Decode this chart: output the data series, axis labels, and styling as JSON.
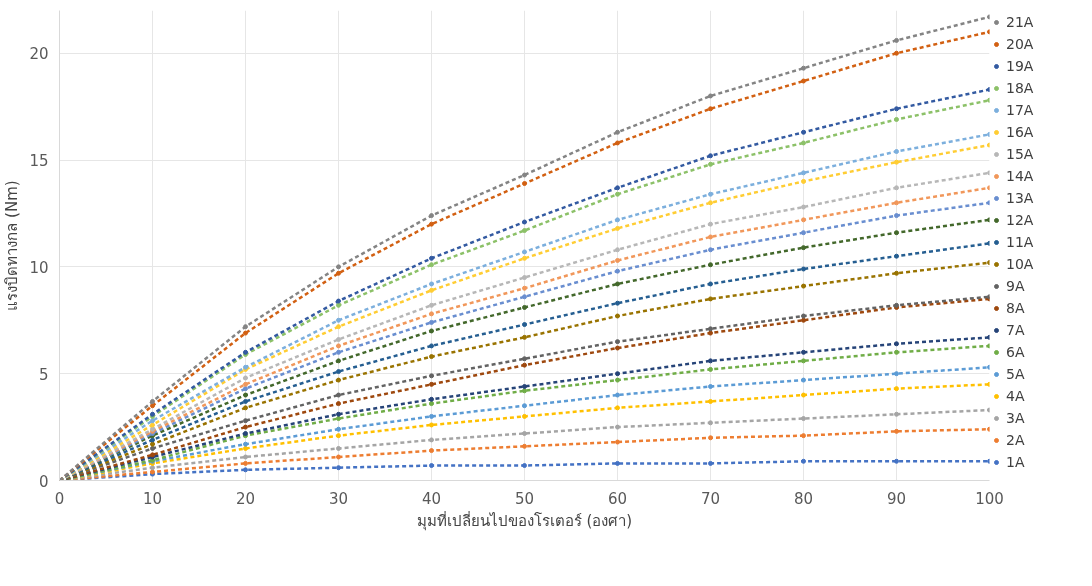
{
  "chart_data": {
    "type": "line",
    "xlabel": "มุมที่เปลี่ยนไปของโรเตอร์ (องศา)",
    "ylabel": "แรงบิดทางกล (Nm)",
    "x": [
      0,
      10,
      20,
      30,
      40,
      50,
      60,
      70,
      80,
      90,
      100
    ],
    "xlim": [
      0,
      100
    ],
    "xticks": [
      0,
      10,
      20,
      30,
      40,
      50,
      60,
      70,
      80,
      90,
      100
    ],
    "ylim": [
      0,
      22
    ],
    "yticks": [
      0,
      5,
      10,
      15,
      20
    ],
    "grid": true,
    "legend": "right",
    "marker": "circle",
    "line_style": "dashed",
    "series": [
      {
        "name": "1A",
        "color": "#4472c4",
        "values": [
          0,
          0.3,
          0.5,
          0.6,
          0.7,
          0.7,
          0.8,
          0.8,
          0.9,
          0.9,
          0.9
        ]
      },
      {
        "name": "2A",
        "color": "#ed7d31",
        "values": [
          0,
          0.4,
          0.8,
          1.1,
          1.4,
          1.6,
          1.8,
          2.0,
          2.1,
          2.3,
          2.4
        ]
      },
      {
        "name": "3A",
        "color": "#a5a5a5",
        "values": [
          0,
          0.6,
          1.1,
          1.5,
          1.9,
          2.2,
          2.5,
          2.7,
          2.9,
          3.1,
          3.3
        ]
      },
      {
        "name": "4A",
        "color": "#ffc000",
        "values": [
          0,
          0.8,
          1.5,
          2.1,
          2.6,
          3.0,
          3.4,
          3.7,
          4.0,
          4.3,
          4.5
        ]
      },
      {
        "name": "5A",
        "color": "#5b9bd5",
        "values": [
          0,
          0.9,
          1.7,
          2.4,
          3.0,
          3.5,
          4.0,
          4.4,
          4.7,
          5.0,
          5.3
        ]
      },
      {
        "name": "6A",
        "color": "#70ad47",
        "values": [
          0,
          0.95,
          2.1,
          2.9,
          3.6,
          4.2,
          4.7,
          5.2,
          5.6,
          6.0,
          6.3
        ]
      },
      {
        "name": "7A",
        "color": "#264478",
        "values": [
          0,
          1.1,
          2.2,
          3.1,
          3.8,
          4.4,
          5.0,
          5.6,
          6.0,
          6.4,
          6.7
        ]
      },
      {
        "name": "8A",
        "color": "#9e480e",
        "values": [
          0,
          1.2,
          2.5,
          3.6,
          4.5,
          5.4,
          6.2,
          6.9,
          7.5,
          8.1,
          8.5
        ]
      },
      {
        "name": "9A",
        "color": "#636363",
        "values": [
          0,
          1.5,
          2.8,
          4.0,
          4.9,
          5.7,
          6.5,
          7.1,
          7.7,
          8.2,
          8.6
        ]
      },
      {
        "name": "10A",
        "color": "#997300",
        "values": [
          0,
          1.7,
          3.4,
          4.7,
          5.8,
          6.7,
          7.7,
          8.5,
          9.1,
          9.7,
          10.2
        ]
      },
      {
        "name": "11A",
        "color": "#255e91",
        "values": [
          0,
          1.9,
          3.7,
          5.1,
          6.3,
          7.3,
          8.3,
          9.2,
          9.9,
          10.5,
          11.1
        ]
      },
      {
        "name": "12A",
        "color": "#43682b",
        "values": [
          0,
          2.1,
          4.0,
          5.6,
          7.0,
          8.1,
          9.2,
          10.1,
          10.9,
          11.6,
          12.2
        ]
      },
      {
        "name": "13A",
        "color": "#698ed0",
        "values": [
          0,
          2.2,
          4.3,
          6.0,
          7.4,
          8.6,
          9.8,
          10.8,
          11.6,
          12.4,
          13.0
        ]
      },
      {
        "name": "14A",
        "color": "#f1975a",
        "values": [
          0,
          2.3,
          4.5,
          6.3,
          7.8,
          9.0,
          10.3,
          11.4,
          12.2,
          13.0,
          13.7
        ]
      },
      {
        "name": "15A",
        "color": "#b7b7b7",
        "values": [
          0,
          2.4,
          4.8,
          6.6,
          8.2,
          9.5,
          10.8,
          12.0,
          12.8,
          13.7,
          14.4
        ]
      },
      {
        "name": "16A",
        "color": "#ffcd33",
        "values": [
          0,
          2.6,
          5.2,
          7.2,
          8.9,
          10.4,
          11.8,
          13.0,
          14.0,
          14.9,
          15.7
        ]
      },
      {
        "name": "17A",
        "color": "#7cafdd",
        "values": [
          0,
          2.8,
          5.3,
          7.5,
          9.2,
          10.7,
          12.2,
          13.4,
          14.4,
          15.4,
          16.2
        ]
      },
      {
        "name": "18A",
        "color": "#8cc168",
        "values": [
          0,
          3.0,
          5.9,
          8.2,
          10.1,
          11.7,
          13.4,
          14.8,
          15.8,
          16.9,
          17.8
        ]
      },
      {
        "name": "19A",
        "color": "#335aa1",
        "values": [
          0,
          3.1,
          6.0,
          8.4,
          10.4,
          12.1,
          13.7,
          15.2,
          16.3,
          17.4,
          18.3
        ]
      },
      {
        "name": "20A",
        "color": "#d26012",
        "values": [
          0,
          3.5,
          6.9,
          9.7,
          12.0,
          13.9,
          15.8,
          17.4,
          18.7,
          20.0,
          21.0
        ]
      },
      {
        "name": "21A",
        "color": "#848484",
        "values": [
          0,
          3.7,
          7.2,
          10.0,
          12.4,
          14.3,
          16.3,
          18.0,
          19.3,
          20.6,
          21.7
        ]
      }
    ]
  }
}
